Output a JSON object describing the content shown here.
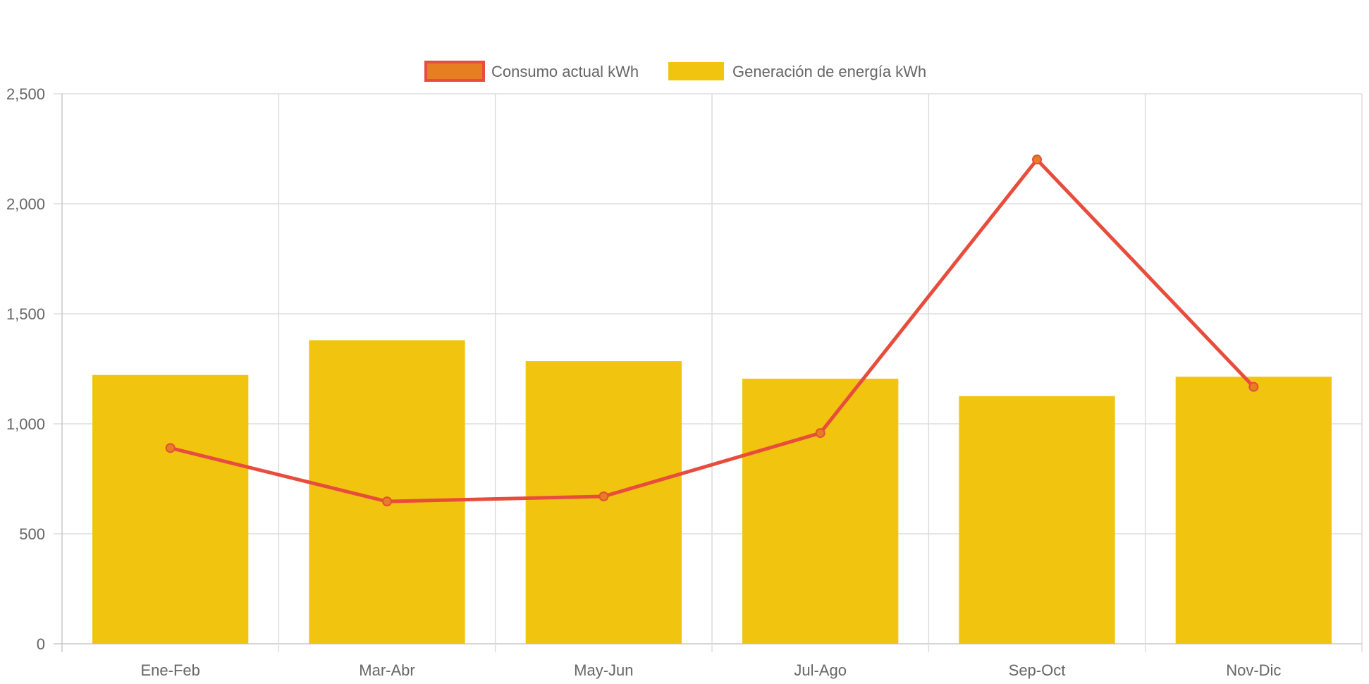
{
  "colors": {
    "line": "#e74c3c",
    "point_fill": "#e67e22",
    "bar": "#f1c40f",
    "grid": "#dddddd",
    "axis_text": "#666666"
  },
  "chart_data": {
    "type": "bar",
    "categories": [
      "Ene-Feb",
      "Mar-Abr",
      "May-Jun",
      "Jul-Ago",
      "Sep-Oct",
      "Nov-Dic"
    ],
    "series": [
      {
        "name": "Consumo actual kWh",
        "type": "line",
        "values": [
          890,
          647,
          670,
          958,
          2201,
          1168
        ]
      },
      {
        "name": "Generación de energía kWh",
        "type": "bar",
        "values": [
          1222,
          1380,
          1285,
          1205,
          1126,
          1214
        ]
      }
    ],
    "ylim": [
      0,
      2500
    ],
    "yticks": [
      0,
      500,
      1000,
      1500,
      2000,
      2500
    ],
    "ytick_labels": [
      "0",
      "500",
      "1,000",
      "1,500",
      "2,000",
      "2,500"
    ],
    "grid": true,
    "legend_position": "top-center",
    "title": "",
    "xlabel": "",
    "ylabel": ""
  }
}
